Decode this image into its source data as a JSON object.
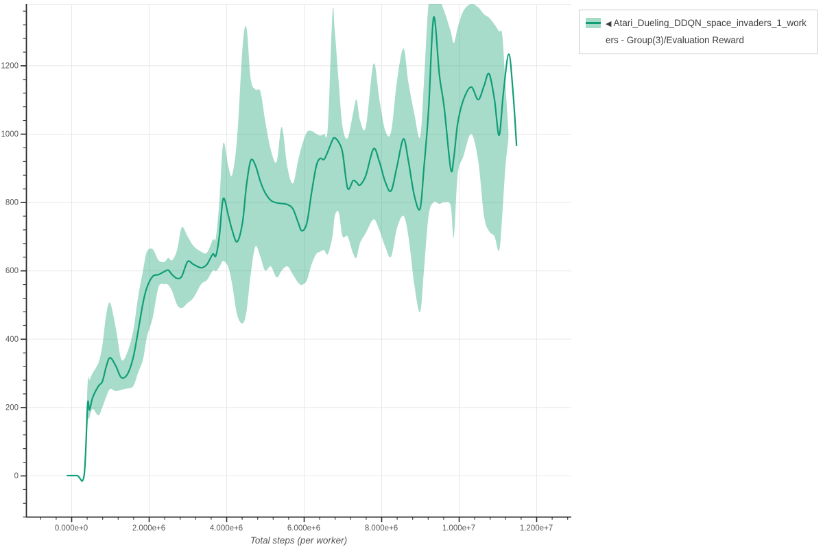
{
  "page": {
    "background": "#ffffff"
  },
  "legend": {
    "marker": "◀",
    "label": "Atari_Dueling_DDQN_space_invaders_1_workers - Group(3)/Evaluation Reward",
    "border_color": "#c9c9c9",
    "text_color": "#3d3d3d"
  },
  "chart_data": {
    "type": "line",
    "title": "",
    "xlabel": "Total steps (per worker)",
    "ylabel": "",
    "legend_position": "top-right",
    "grid": "major-only",
    "x_axis": {
      "tick_labels": [
        "0.000e+0",
        "2.000e+6",
        "4.000e+6",
        "6.000e+6",
        "8.000e+6",
        "1.000e+7",
        "1.200e+7"
      ],
      "tick_values_e6": [
        0,
        2,
        4,
        6,
        8,
        10,
        12
      ],
      "minor_step_e6": 0.4,
      "range_e6": [
        -1.17,
        12.9
      ]
    },
    "y_axis": {
      "tick_labels": [
        "0",
        "200",
        "400",
        "600",
        "800",
        "1000",
        "1200"
      ],
      "tick_values": [
        0,
        200,
        400,
        600,
        800,
        1000,
        1200
      ],
      "minor_step": 40,
      "range": [
        -120,
        1375
      ]
    },
    "colors": {
      "grid": "#e8e8e8",
      "spine": "#2b2b2b",
      "tick_label": "#565656",
      "axis_title": "#555555",
      "line": "#0f9e76",
      "band_fill": "rgba(16,158,110,0.37)",
      "legend_band": "#a6dbc8"
    },
    "series": [
      {
        "name": "Atari_Dueling_DDQN_space_invaders_1_workers - Group(3)/Evaluation Reward",
        "x_e6": [
          -0.1,
          0.15,
          0.33,
          0.42,
          0.47,
          0.55,
          0.7,
          0.8,
          0.9,
          1.0,
          1.15,
          1.29,
          1.45,
          1.6,
          1.72,
          1.85,
          1.95,
          2.1,
          2.25,
          2.4,
          2.5,
          2.6,
          2.73,
          2.85,
          3.0,
          3.15,
          3.35,
          3.5,
          3.65,
          3.73,
          3.82,
          3.92,
          4.05,
          4.15,
          4.28,
          4.42,
          4.52,
          4.63,
          4.75,
          4.88,
          5.0,
          5.15,
          5.3,
          5.43,
          5.58,
          5.72,
          5.85,
          5.95,
          6.08,
          6.2,
          6.32,
          6.42,
          6.52,
          6.62,
          6.74,
          6.8,
          6.9,
          7.0,
          7.13,
          7.27,
          7.36,
          7.45,
          7.6,
          7.8,
          7.95,
          8.1,
          8.25,
          8.4,
          8.57,
          8.7,
          8.85,
          9.0,
          9.1,
          9.22,
          9.35,
          9.5,
          9.62,
          9.79,
          9.87,
          9.97,
          10.12,
          10.32,
          10.5,
          10.65,
          10.78,
          10.92,
          11.04,
          11.15,
          11.29,
          11.4,
          11.49
        ],
        "mean": [
          0,
          0,
          0,
          207,
          192,
          228,
          262,
          275,
          318,
          345,
          320,
          287,
          297,
          347,
          420,
          505,
          550,
          583,
          588,
          597,
          601,
          588,
          577,
          583,
          626,
          618,
          608,
          618,
          648,
          643,
          700,
          810,
          762,
          718,
          684,
          742,
          850,
          922,
          908,
          860,
          828,
          805,
          798,
          796,
          793,
          780,
          742,
          716,
          740,
          828,
          905,
          928,
          925,
          948,
          982,
          988,
          975,
          945,
          841,
          863,
          858,
          850,
          878,
          956,
          918,
          860,
          833,
          902,
          985,
          920,
          820,
          781,
          900,
          1070,
          1341,
          1170,
          1080,
          898,
          930,
          1030,
          1100,
          1137,
          1100,
          1140,
          1176,
          1100,
          996,
          1120,
          1233,
          1120,
          966
        ],
        "band_x_e6": [
          -0.1,
          0.15,
          0.33,
          0.42,
          0.47,
          0.55,
          0.7,
          0.8,
          0.9,
          1.0,
          1.15,
          1.29,
          1.45,
          1.6,
          1.72,
          1.85,
          1.95,
          2.1,
          2.25,
          2.4,
          2.5,
          2.6,
          2.73,
          2.85,
          3.0,
          3.15,
          3.35,
          3.5,
          3.65,
          3.73,
          3.82,
          3.92,
          4.05,
          4.15,
          4.28,
          4.42,
          4.52,
          4.63,
          4.75,
          4.88,
          5.0,
          5.15,
          5.3,
          5.43,
          5.58,
          5.72,
          5.85,
          5.95,
          6.08,
          6.2,
          6.32,
          6.42,
          6.52,
          6.62,
          6.74,
          6.8,
          6.9,
          7.0,
          7.13,
          7.27,
          7.36,
          7.45,
          7.6,
          7.8,
          7.95,
          8.1,
          8.25,
          8.4,
          8.57,
          8.7,
          8.85,
          9.0,
          9.1,
          9.22,
          9.35,
          9.5,
          9.62,
          9.79,
          9.87,
          9.97,
          10.12,
          10.32,
          10.5,
          10.65,
          10.78,
          10.92,
          11.04,
          11.12,
          11.2,
          11.28
        ],
        "band_lower": [
          0,
          0,
          0,
          150,
          170,
          195,
          176,
          200,
          230,
          253,
          247,
          251,
          255,
          262,
          300,
          340,
          405,
          462,
          551,
          560,
          558,
          540,
          500,
          490,
          505,
          520,
          560,
          572,
          600,
          598,
          610,
          628,
          610,
          560,
          470,
          445,
          480,
          590,
          670,
          640,
          600,
          612,
          580,
          600,
          612,
          588,
          565,
          558,
          572,
          618,
          648,
          655,
          660,
          648,
          700,
          760,
          770,
          700,
          700,
          650,
          638,
          680,
          710,
          750,
          718,
          670,
          640,
          722,
          760,
          700,
          560,
          478,
          600,
          760,
          800,
          795,
          800,
          790,
          698,
          880,
          935,
          1000,
          920,
          760,
          715,
          700,
          658,
          760,
          900,
          985
        ],
        "band_upper": [
          0,
          0,
          0,
          266,
          280,
          300,
          330,
          380,
          470,
          505,
          430,
          340,
          362,
          425,
          520,
          600,
          655,
          662,
          630,
          625,
          637,
          630,
          660,
          726,
          700,
          672,
          655,
          652,
          690,
          696,
          800,
          972,
          905,
          880,
          990,
          1255,
          1310,
          1160,
          1130,
          1123,
          1040,
          952,
          918,
          1020,
          900,
          855,
          920,
          965,
          1005,
          1008,
          1000,
          995,
          1000,
          1020,
          1355,
          1300,
          1150,
          1020,
          987,
          1060,
          1100,
          1040,
          1020,
          1205,
          1100,
          1010,
          1005,
          1150,
          1250,
          1150,
          1060,
          990,
          1150,
          1380,
          1390,
          1390,
          1360,
          1300,
          1265,
          1310,
          1360,
          1380,
          1370,
          1350,
          1340,
          1320,
          1300,
          1290,
          1150,
          1010
        ]
      }
    ]
  }
}
